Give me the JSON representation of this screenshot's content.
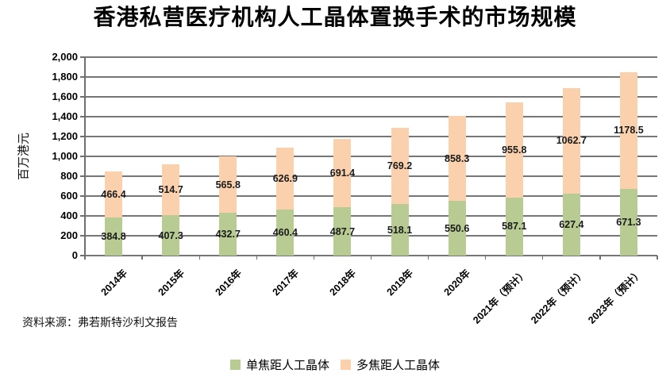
{
  "title": "香港私营医疗机构人工晶体置换手术的市场规模",
  "source": "资料来源：弗若斯特沙利文报告",
  "chart_data": {
    "type": "bar",
    "stacked": true,
    "title": "香港私营医疗机构人工晶体置换手术的市场规模",
    "ylabel": "百万港元",
    "ylim": [
      0,
      2000
    ],
    "ytick_step": 200,
    "ytick_labels": [
      "0",
      "200",
      "400",
      "600",
      "800",
      "1,000",
      "1,200",
      "1,400",
      "1,600",
      "1,800",
      "2,000"
    ],
    "grid": true,
    "legend_position": "bottom",
    "categories": [
      "2014年",
      "2015年",
      "2016年",
      "2017年",
      "2018年",
      "2019年",
      "2020年",
      "2021年（预计）",
      "2022年（预计）",
      "2023年（预计）"
    ],
    "series": [
      {
        "name": "单焦距人工晶体",
        "color": "#b7cb92",
        "values": [
          384.8,
          407.3,
          432.7,
          460.4,
          487.7,
          518.1,
          550.6,
          587.1,
          627.4,
          671.3
        ]
      },
      {
        "name": "多焦距人工晶体",
        "color": "#fbd1ad",
        "values": [
          466.4,
          514.7,
          565.8,
          626.9,
          691.4,
          769.2,
          858.3,
          955.8,
          1062.7,
          1178.5
        ]
      }
    ]
  }
}
